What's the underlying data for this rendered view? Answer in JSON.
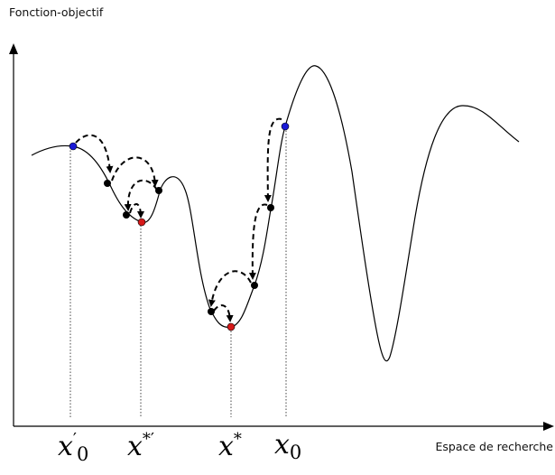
{
  "labels": {
    "y_axis": "Fonction-objectif",
    "x_axis": "Espace de recherche"
  },
  "markers": {
    "x0_prime": {
      "base": "x",
      "sup": "′",
      "sub": "0"
    },
    "x_star_prime": {
      "base": "x",
      "sup": "*′"
    },
    "x_star": {
      "base": "x",
      "sup": "*"
    },
    "x0": {
      "base": "x",
      "sub": "0"
    }
  },
  "colors": {
    "curve": "#000000",
    "start_point": "#1a1ad6",
    "optimum_point": "#d61a1a",
    "step_point": "#000000",
    "guide_line": "#444444"
  }
}
